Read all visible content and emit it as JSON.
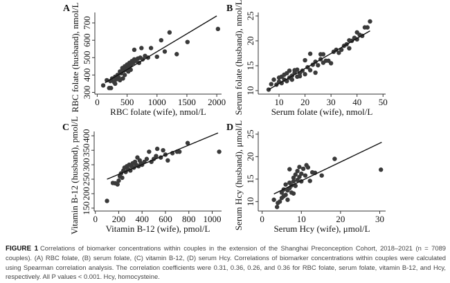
{
  "caption": {
    "label": "FIGURE 1",
    "text": "Correlations of biomarker concentrations within couples in the extension of the Shanghai Preconception Cohort, 2018–2021 (n = 7089 couples). (A) RBC folate, (B) serum folate, (C) vitamin B-12, (D) serum Hcy. Correlations of biomarker concentrations within couples were calculated using Spearman correlation analysis. The correlation coefficients were 0.31, 0.36, 0.26, and 0.36 for RBC folate, serum folate, vitamin B-12, and Hcy, respectively. All P values < 0.001. Hcy, homocysteine."
  },
  "chart_data": [
    {
      "panel": "A",
      "type": "scatter",
      "xlabel": "RBC folate (wife), nmol/L",
      "ylabel": "RBC folate (husband), nmol/L",
      "xticks": [
        0,
        500,
        1000,
        1500,
        2000
      ],
      "yticks": [
        300,
        400,
        500,
        600,
        700
      ],
      "xlim": [
        -40,
        2080
      ],
      "ylim": [
        290,
        760
      ],
      "points": [
        [
          100,
          340
        ],
        [
          200,
          325
        ],
        [
          230,
          325
        ],
        [
          160,
          370
        ],
        [
          220,
          365
        ],
        [
          250,
          380
        ],
        [
          280,
          360
        ],
        [
          300,
          390
        ],
        [
          320,
          375
        ],
        [
          340,
          400
        ],
        [
          360,
          385
        ],
        [
          380,
          420
        ],
        [
          400,
          410
        ],
        [
          420,
          440
        ],
        [
          440,
          425
        ],
        [
          460,
          450
        ],
        [
          480,
          430
        ],
        [
          500,
          460
        ],
        [
          520,
          440
        ],
        [
          540,
          470
        ],
        [
          560,
          455
        ],
        [
          580,
          480
        ],
        [
          600,
          470
        ],
        [
          620,
          490
        ],
        [
          650,
          480
        ],
        [
          680,
          495
        ],
        [
          700,
          470
        ],
        [
          720,
          500
        ],
        [
          760,
          490
        ],
        [
          800,
          510
        ],
        [
          850,
          500
        ],
        [
          300,
          350
        ],
        [
          380,
          370
        ],
        [
          430,
          380
        ],
        [
          460,
          400
        ],
        [
          520,
          420
        ],
        [
          560,
          430
        ],
        [
          620,
          545
        ],
        [
          740,
          555
        ],
        [
          900,
          555
        ],
        [
          1000,
          505
        ],
        [
          1070,
          600
        ],
        [
          1130,
          535
        ],
        [
          1210,
          645
        ],
        [
          1330,
          520
        ],
        [
          1510,
          590
        ],
        [
          2020,
          665
        ]
      ],
      "fit_line": [
        [
          130,
          355
        ],
        [
          2000,
          740
        ]
      ]
    },
    {
      "panel": "B",
      "type": "scatter",
      "xlabel": "Serum folate (wife), nmol/L",
      "ylabel": "Serum folate (husband), nmol/L",
      "xticks": [
        10,
        20,
        30,
        40,
        50
      ],
      "yticks": [
        10,
        15,
        20,
        25
      ],
      "xlim": [
        2,
        51
      ],
      "ylim": [
        9.3,
        25.7
      ],
      "points": [
        [
          6,
          10.2
        ],
        [
          7,
          11.3
        ],
        [
          8,
          12.2
        ],
        [
          9,
          11.2
        ],
        [
          10,
          11.8
        ],
        [
          10,
          12.6
        ],
        [
          11,
          11.5
        ],
        [
          11,
          12.8
        ],
        [
          12,
          12.2
        ],
        [
          12,
          13.2
        ],
        [
          13,
          11.9
        ],
        [
          13,
          13.5
        ],
        [
          14,
          12.6
        ],
        [
          14,
          14
        ],
        [
          15,
          13
        ],
        [
          15,
          12.2
        ],
        [
          16,
          13.6
        ],
        [
          16,
          14.1
        ],
        [
          17,
          12.8
        ],
        [
          17,
          14.2
        ],
        [
          18,
          13.5
        ],
        [
          18,
          12.9
        ],
        [
          19,
          14
        ],
        [
          20,
          13.3
        ],
        [
          20,
          16.1
        ],
        [
          21,
          14.7
        ],
        [
          22,
          17.4
        ],
        [
          22,
          14.1
        ],
        [
          23,
          15.2
        ],
        [
          24,
          13.6
        ],
        [
          24,
          15.8
        ],
        [
          25,
          15.1
        ],
        [
          26,
          16.3
        ],
        [
          26,
          17.3
        ],
        [
          27,
          15.6
        ],
        [
          27,
          17.3
        ],
        [
          28,
          16
        ],
        [
          29,
          16
        ],
        [
          30,
          15.5
        ],
        [
          31,
          17.8
        ],
        [
          32,
          18.2
        ],
        [
          33,
          17.6
        ],
        [
          34,
          18.2
        ],
        [
          35,
          19
        ],
        [
          36,
          19.3
        ],
        [
          37,
          18.5
        ],
        [
          37,
          20.1
        ],
        [
          38,
          20
        ],
        [
          39,
          20.6
        ],
        [
          40,
          20.3
        ],
        [
          40,
          21.7
        ],
        [
          41,
          21.2
        ],
        [
          42,
          21
        ],
        [
          43,
          22.7
        ],
        [
          44,
          22.7
        ],
        [
          45,
          23.9
        ]
      ],
      "fit_line": [
        [
          6,
          10.2
        ],
        [
          45,
          22
        ]
      ]
    },
    {
      "panel": "C",
      "type": "scatter",
      "xlabel": "Vitamin B-12 (wife), pmol/L",
      "ylabel": "Vitamin B-12 (husband), pmol/L",
      "xticks": [
        0,
        200,
        400,
        600,
        800,
        1000
      ],
      "yticks": [
        150,
        200,
        250,
        300,
        350,
        400
      ],
      "xlim": [
        -10,
        1080
      ],
      "ylim": [
        140,
        415
      ],
      "points": [
        [
          100,
          175
        ],
        [
          150,
          237
        ],
        [
          170,
          236
        ],
        [
          190,
          232
        ],
        [
          200,
          245
        ],
        [
          210,
          260
        ],
        [
          220,
          270
        ],
        [
          230,
          255
        ],
        [
          240,
          280
        ],
        [
          250,
          290
        ],
        [
          260,
          275
        ],
        [
          270,
          295
        ],
        [
          280,
          285
        ],
        [
          290,
          300
        ],
        [
          300,
          280
        ],
        [
          310,
          295
        ],
        [
          320,
          305
        ],
        [
          330,
          290
        ],
        [
          340,
          310
        ],
        [
          350,
          300
        ],
        [
          360,
          325
        ],
        [
          370,
          295
        ],
        [
          380,
          315
        ],
        [
          390,
          305
        ],
        [
          400,
          300
        ],
        [
          420,
          310
        ],
        [
          440,
          320
        ],
        [
          460,
          345
        ],
        [
          480,
          310
        ],
        [
          500,
          320
        ],
        [
          520,
          330
        ],
        [
          530,
          355
        ],
        [
          560,
          325
        ],
        [
          580,
          350
        ],
        [
          600,
          335
        ],
        [
          620,
          315
        ],
        [
          660,
          340
        ],
        [
          700,
          345
        ],
        [
          720,
          345
        ],
        [
          790,
          375
        ],
        [
          1060,
          345
        ]
      ],
      "fit_line": [
        [
          100,
          250
        ],
        [
          1050,
          410
        ]
      ]
    },
    {
      "panel": "D",
      "type": "scatter",
      "xlabel": "Serum Hcy (wife), μmol/L",
      "ylabel": "Serum Hcy (husband), μmol/L",
      "xticks": [
        0,
        10,
        20,
        30
      ],
      "yticks": [
        10,
        15,
        20,
        25
      ],
      "xlim": [
        -1,
        31.5
      ],
      "ylim": [
        7.9,
        25.6
      ],
      "points": [
        [
          3,
          10.4
        ],
        [
          3.8,
          8.8
        ],
        [
          4,
          9.7
        ],
        [
          4.5,
          10
        ],
        [
          5,
          10.8
        ],
        [
          5,
          12
        ],
        [
          5.5,
          11.2
        ],
        [
          5.5,
          12.7
        ],
        [
          6,
          11.5
        ],
        [
          6,
          13.8
        ],
        [
          6.5,
          12.5
        ],
        [
          6.5,
          10.4
        ],
        [
          7,
          13
        ],
        [
          7,
          17.2
        ],
        [
          7,
          14.2
        ],
        [
          7.5,
          12
        ],
        [
          7.5,
          13.6
        ],
        [
          8,
          14.5
        ],
        [
          8,
          11.8
        ],
        [
          8,
          15.3
        ],
        [
          8.5,
          13.5
        ],
        [
          8.5,
          16
        ],
        [
          9,
          14.8
        ],
        [
          9,
          16.8
        ],
        [
          9.5,
          15.5
        ],
        [
          9.5,
          17.7
        ],
        [
          10,
          16.2
        ],
        [
          10,
          14.5
        ],
        [
          10.5,
          17.3
        ],
        [
          11,
          15.8
        ],
        [
          11.3,
          18.1
        ],
        [
          11.7,
          17.6
        ],
        [
          12.2,
          14.6
        ],
        [
          12.8,
          16.5
        ],
        [
          13.5,
          16.4
        ],
        [
          15.2,
          15.8
        ],
        [
          18.5,
          19.5
        ],
        [
          30.3,
          17.1
        ]
      ],
      "fit_line": [
        [
          3,
          11.7
        ],
        [
          30.5,
          23.2
        ]
      ]
    }
  ]
}
